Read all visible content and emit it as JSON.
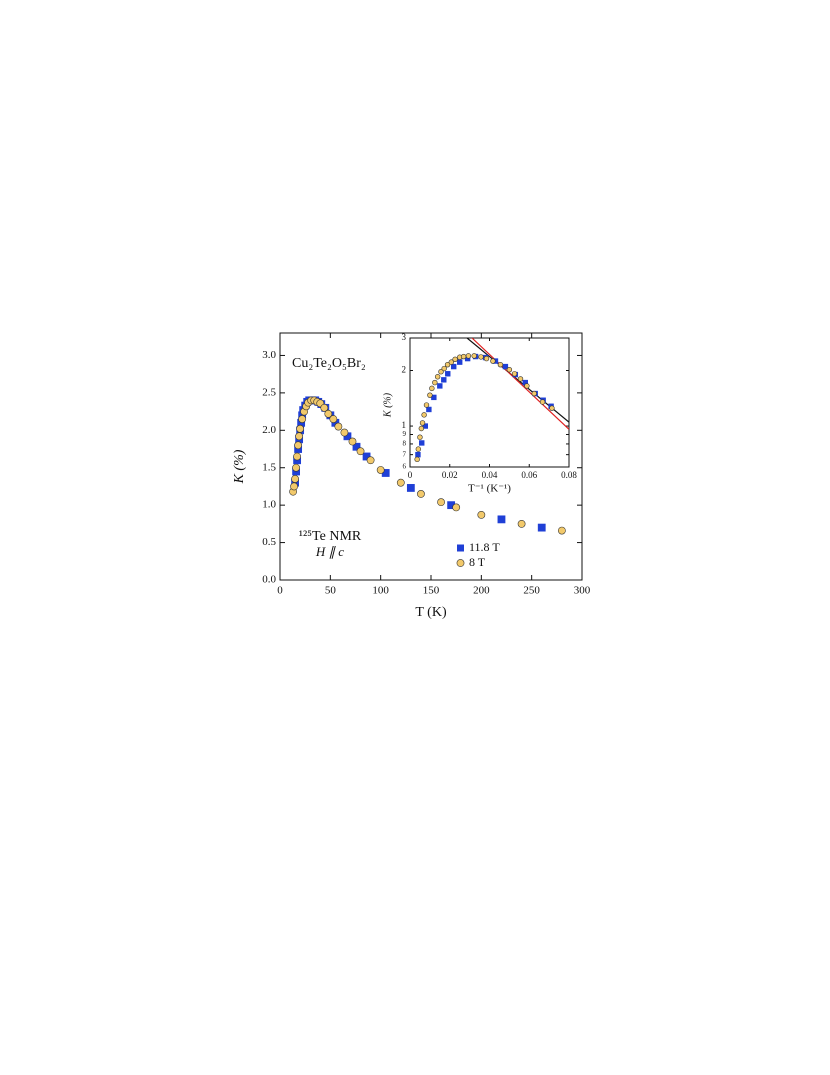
{
  "chart_data": [
    {
      "type": "scatter",
      "annotations": [
        "Cu₂Te₂O₅Br₂",
        "¹²⁵Te NMR",
        "H ∥ c"
      ],
      "x_label": "T (K)",
      "y_label": "K (%)",
      "xlim": [
        0,
        300
      ],
      "ylim": [
        0,
        3.3
      ],
      "xticks": [
        0,
        50,
        100,
        150,
        200,
        250,
        300
      ],
      "yticks": [
        {
          "value": 0,
          "label": "0.0"
        },
        {
          "value": 0.5,
          "label": "0.5"
        },
        {
          "value": 1,
          "label": "1.0"
        },
        {
          "value": 1.5,
          "label": "1.5"
        },
        {
          "value": 2,
          "label": "2.0"
        },
        {
          "value": 2.5,
          "label": "2.5"
        },
        {
          "value": 3,
          "label": "3.0"
        }
      ],
      "series": [
        {
          "name": "11.8 T",
          "color": "#1f3fd6",
          "marker": "square",
          "x": [
            15,
            16,
            17,
            18,
            19,
            20,
            21,
            22,
            23,
            25,
            27,
            29,
            32,
            35,
            38,
            41,
            45,
            50,
            55,
            67,
            76,
            86,
            105,
            130,
            170,
            220,
            260
          ],
          "values": [
            1.3,
            1.45,
            1.6,
            1.75,
            1.88,
            2.0,
            2.1,
            2.2,
            2.27,
            2.33,
            2.38,
            2.4,
            2.4,
            2.4,
            2.38,
            2.35,
            2.3,
            2.2,
            2.1,
            1.92,
            1.78,
            1.65,
            1.43,
            1.23,
            1.0,
            0.81,
            0.7
          ]
        },
        {
          "name": "8 T",
          "color": "#f2c96b",
          "marker": "circle",
          "x": [
            13,
            14,
            15,
            16,
            17,
            18,
            19,
            20,
            22,
            24,
            26,
            28,
            31,
            34,
            37,
            40,
            44,
            48,
            53,
            58,
            64,
            72,
            80,
            90,
            100,
            120,
            140,
            160,
            175,
            200,
            240,
            280
          ],
          "values": [
            1.18,
            1.25,
            1.35,
            1.5,
            1.65,
            1.8,
            1.92,
            2.02,
            2.15,
            2.25,
            2.32,
            2.37,
            2.4,
            2.4,
            2.38,
            2.36,
            2.3,
            2.22,
            2.15,
            2.05,
            1.97,
            1.85,
            1.72,
            1.6,
            1.47,
            1.3,
            1.15,
            1.04,
            0.97,
            0.87,
            0.75,
            0.66
          ]
        }
      ]
    },
    {
      "type": "scatter",
      "ylog": true,
      "x_label": "T⁻¹ (K⁻¹)",
      "y_label": "K (%)",
      "xlim": [
        0,
        0.08
      ],
      "ylim": [
        0.6,
        3
      ],
      "xticks": [
        0,
        0.02,
        0.04,
        0.06,
        0.08
      ],
      "yticks": [
        {
          "value": 0.6,
          "label": "6"
        },
        {
          "value": 0.7,
          "label": "7"
        },
        {
          "value": 0.8,
          "label": "8"
        },
        {
          "value": 0.9,
          "label": "9"
        },
        1,
        2,
        3
      ],
      "series": [
        {
          "name": "11.8 T",
          "color": "#1f3fd6",
          "marker": "square",
          "x": [
            0.004,
            0.0059,
            0.0077,
            0.0095,
            0.012,
            0.015,
            0.017,
            0.019,
            0.022,
            0.025,
            0.029,
            0.033,
            0.038,
            0.043,
            0.048,
            0.053,
            0.058,
            0.063,
            0.067,
            0.071
          ],
          "values": [
            0.7,
            0.81,
            1.0,
            1.23,
            1.43,
            1.65,
            1.78,
            1.92,
            2.1,
            2.22,
            2.32,
            2.38,
            2.35,
            2.25,
            2.1,
            1.9,
            1.72,
            1.5,
            1.38,
            1.28
          ]
        },
        {
          "name": "8 T",
          "color": "#f2c96b",
          "marker": "circle",
          "x": [
            0.0036,
            0.0042,
            0.005,
            0.0057,
            0.0063,
            0.0071,
            0.0083,
            0.01,
            0.011,
            0.0125,
            0.0139,
            0.0156,
            0.0172,
            0.0189,
            0.0208,
            0.0227,
            0.025,
            0.027,
            0.0294,
            0.0323,
            0.0357,
            0.0385,
            0.0417,
            0.0455,
            0.05,
            0.0526,
            0.0556,
            0.0588,
            0.0625,
            0.0667,
            0.0714
          ],
          "values": [
            0.66,
            0.75,
            0.87,
            0.97,
            1.04,
            1.15,
            1.3,
            1.47,
            1.6,
            1.72,
            1.85,
            1.97,
            2.05,
            2.15,
            2.22,
            2.3,
            2.36,
            2.38,
            2.4,
            2.4,
            2.37,
            2.32,
            2.25,
            2.15,
            2.02,
            1.92,
            1.8,
            1.65,
            1.5,
            1.35,
            1.25
          ]
        }
      ],
      "lines": [
        {
          "color": "#111111",
          "x": [
            0.0287,
            0.08
          ],
          "values": [
            3,
            1.05
          ]
        },
        {
          "color": "#e02020",
          "x": [
            0.0312,
            0.08
          ],
          "values": [
            3,
            0.96
          ]
        }
      ]
    }
  ]
}
